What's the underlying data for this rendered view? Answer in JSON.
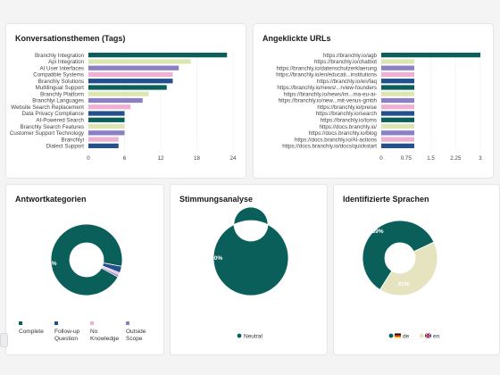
{
  "colors": {
    "teal": "#0b5f5a",
    "light_green": "#dde6b3",
    "purple": "#8b7fc6",
    "pink": "#eeb1d3",
    "navy": "#24508d",
    "cream": "#e6e4c0"
  },
  "chart_data": [
    {
      "type": "bar",
      "orientation": "horizontal",
      "title": "Konversationsthemen (Tags)",
      "categories": [
        "Branchly Integration",
        "Api Integration",
        "AI User Interfaces",
        "Compatible Systems",
        "Branchly Solutions",
        "Multilingual Support",
        "Branchly Platform",
        "Branchlyi Languages",
        "Website Search Replacement",
        "Data Privacy Compliance",
        "AI-Powered Search",
        "Branchly Search Features",
        "Customer Support Technology",
        "Branchlyi",
        "Dialect Support"
      ],
      "values": [
        23,
        17,
        15,
        14,
        14,
        13,
        10,
        9,
        7,
        6,
        6,
        6,
        6,
        5,
        5
      ],
      "bar_colors": [
        "#0b5f5a",
        "#dde6b3",
        "#8b7fc6",
        "#eeb1d3",
        "#24508d",
        "#0b5f5a",
        "#dde6b3",
        "#8b7fc6",
        "#eeb1d3",
        "#24508d",
        "#0b5f5a",
        "#dde6b3",
        "#8b7fc6",
        "#eeb1d3",
        "#24508d"
      ],
      "xticks": [
        "0",
        "6",
        "12",
        "18",
        "24"
      ],
      "xlim": [
        0,
        24
      ]
    },
    {
      "type": "bar",
      "orientation": "horizontal",
      "title": "Angeklickte URLs",
      "categories": [
        "https://branchly.io/agb",
        "https://branchly.io/chatbot",
        "https://branchly.io/datenschutzerklaerung",
        "https://branchly.io/en/educati...institutions",
        "https://branchly.io/en/faq",
        "https://branchly.io/news/...rview-founders",
        "https://branchly.io/news/im...ma-eu-ai-",
        "https://branchly.io/new...mit-venus-gmbh",
        "https://branchly.io/preise",
        "https://branchly.io/search",
        "https://branchly.io/toms",
        "https://docs.branchly.io/",
        "https://docs.branchly.io/blog",
        "https://docs.branchly.io/AI-actions",
        "https://docs.branchly.io/docs/quickstart"
      ],
      "values": [
        3,
        1,
        1,
        1,
        1,
        1,
        1,
        1,
        1,
        1,
        1,
        1,
        1,
        1,
        1
      ],
      "bar_colors": [
        "#0b5f5a",
        "#dde6b3",
        "#8b7fc6",
        "#eeb1d3",
        "#24508d",
        "#0b5f5a",
        "#dde6b3",
        "#8b7fc6",
        "#eeb1d3",
        "#24508d",
        "#0b5f5a",
        "#dde6b3",
        "#8b7fc6",
        "#eeb1d3",
        "#24508d"
      ],
      "xticks": [
        "0",
        "0.75",
        "1.5",
        "2.25",
        "3"
      ],
      "xlim": [
        0,
        3
      ]
    },
    {
      "type": "pie",
      "title": "Antwortkategorien",
      "donut": true,
      "slices": [
        {
          "name": "Complete",
          "value": 95,
          "color": "#0b5f5a"
        },
        {
          "name": "Follow-up Question",
          "value": 3,
          "color": "#24508d"
        },
        {
          "name": "No Knowledge",
          "value": 1,
          "color": "#eeb1d3"
        },
        {
          "name": "Outside Scope",
          "value": 1,
          "color": "#8b7fc6"
        }
      ],
      "visible_label": "95%",
      "legend": [
        {
          "lines": [
            "Complete"
          ],
          "color": "#0b5f5a"
        },
        {
          "lines": [
            "Follow-up",
            "Question"
          ],
          "color": "#24508d"
        },
        {
          "lines": [
            "No",
            "Knowledge"
          ],
          "color": "#eeb1d3"
        },
        {
          "lines": [
            "Outside",
            "Scope"
          ],
          "color": "#8b7fc6"
        }
      ]
    },
    {
      "type": "pie",
      "title": "Stimmungsanalyse",
      "donut": true,
      "slices": [
        {
          "name": "Neutral",
          "value": 100,
          "color": "#0b5f5a"
        }
      ],
      "visible_label": "100%",
      "legend": [
        {
          "lines": [
            "Neutral"
          ],
          "color": "#0b5f5a"
        }
      ]
    },
    {
      "type": "pie",
      "title": "Identifizierte Sprachen",
      "donut": true,
      "slices": [
        {
          "name": "de",
          "value": 59,
          "color": "#0b5f5a"
        },
        {
          "name": "en",
          "value": 41,
          "color": "#e6e4c0"
        }
      ],
      "labels": [
        "59%",
        "41%"
      ],
      "legend": [
        {
          "lines": [
            "de"
          ],
          "color": "#0b5f5a",
          "flag": "de-flag-icon"
        },
        {
          "lines": [
            "en"
          ],
          "color": "#e6e4c0",
          "flag": "gb-flag-icon"
        }
      ]
    }
  ]
}
